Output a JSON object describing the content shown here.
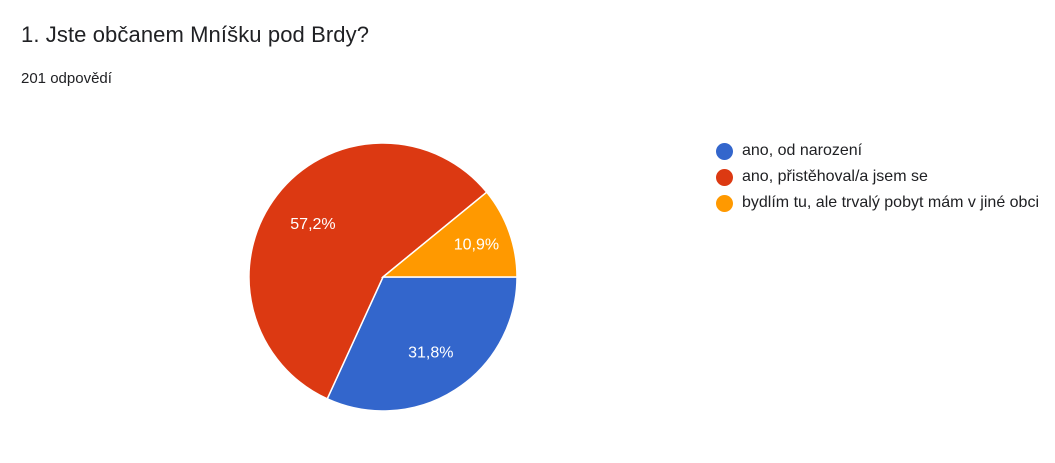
{
  "header": {
    "title": "1. Jste občanem Mníšku pod Brdy?",
    "responses": "201 odpovědí"
  },
  "chart_data": {
    "type": "pie",
    "categories": [
      "ano, od narození",
      "ano, přistěhoval/a jsem se",
      "bydlím tu, ale trvalý pobyt mám v jiné obci"
    ],
    "values": [
      31.8,
      57.2,
      10.9
    ],
    "value_labels": [
      "31,8%",
      "57,2%",
      "10,9%"
    ],
    "colors": [
      "#3366cc",
      "#dc3912",
      "#ff9900"
    ],
    "legend_position": "right",
    "start_angle_deg": 90,
    "direction": "clockwise"
  }
}
